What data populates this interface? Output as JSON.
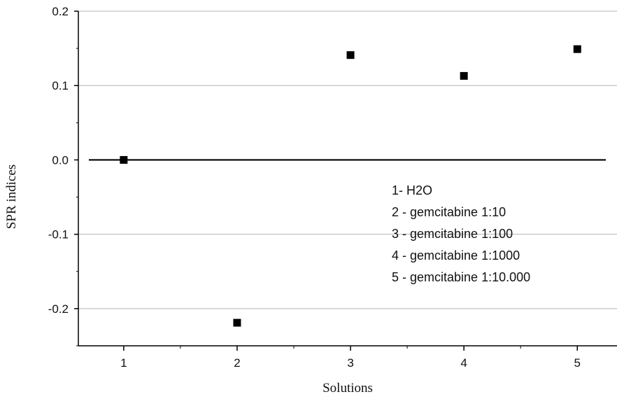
{
  "chart_data": {
    "type": "scatter",
    "xlabel": "Solutions",
    "ylabel": "SPR indices",
    "xlim": [
      0.6,
      5.35
    ],
    "ylim": [
      -0.25,
      0.2
    ],
    "x_ticks": [
      1,
      2,
      3,
      4,
      5
    ],
    "y_ticks": [
      0.2,
      0.1,
      0.0,
      -0.1,
      -0.2
    ],
    "y_tick_labels": [
      "0.2",
      "0.1",
      "0.0",
      "-0.1",
      "-0.2"
    ],
    "grid": "horizontal",
    "baseline": 0,
    "series": [
      {
        "x": [
          1,
          2,
          3,
          4,
          5
        ],
        "y": [
          0.0,
          -0.219,
          0.141,
          0.113,
          0.149
        ],
        "marker": "square",
        "color": "#000000"
      }
    ],
    "legend_placement": "center-right",
    "annotation_lines": [
      "1- H2O",
      "2 - gemcitabine 1:10",
      "3 -  gemcitabine 1:100",
      "4 - gemcitabine 1:1000",
      "5 - gemcitabine 1:10.000"
    ],
    "colors": {
      "grid": "#b4b4b4",
      "axis": "#000000",
      "marker": "#000000"
    }
  }
}
